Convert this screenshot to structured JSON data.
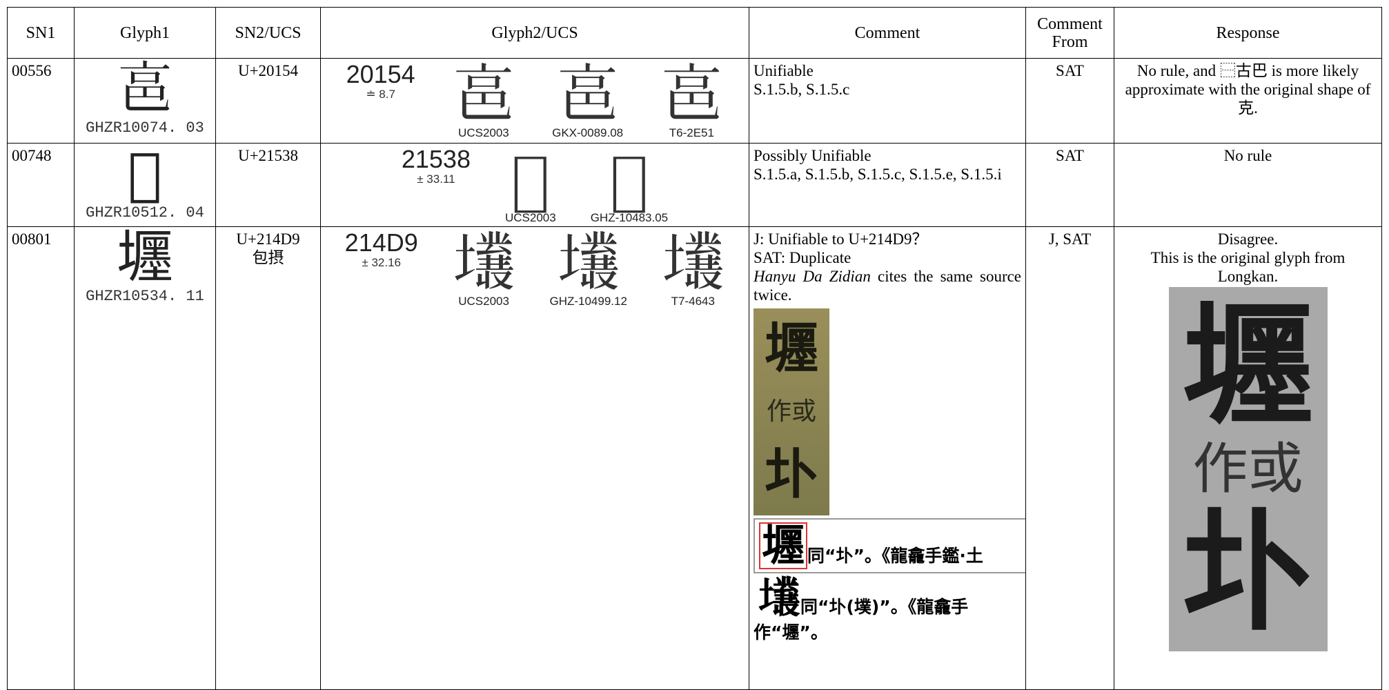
{
  "table": {
    "header": [
      "SN1",
      "Glyph1",
      "SN2/UCS",
      "Glyph2/UCS",
      "Comment",
      "Comment From",
      "Response"
    ],
    "rows": [
      {
        "sn1": "00556",
        "glyph1": {
          "char": "𠅔",
          "source": "GHZR10074. 03"
        },
        "sn2": [
          "U+20154"
        ],
        "glyph2": {
          "code": "20154",
          "score": "≐ 8.7",
          "variants": [
            {
              "char": "𠅔",
              "label": "UCS2003"
            },
            {
              "char": "𠅔",
              "label": "GKX-0089.08"
            },
            {
              "char": "𠅔",
              "label": "T6-2E51"
            }
          ]
        },
        "comment": [
          "Unifiable",
          "S.1.5.b, S.1.5.c"
        ],
        "comment_from": "SAT",
        "response": [
          "No rule, and ⿱古巴 is more likely approximate with the original shape of 克."
        ]
      },
      {
        "sn1": "00748",
        "glyph1": {
          "char": "𡔸",
          "source": "GHZR10512. 04"
        },
        "sn2": [
          "U+21538"
        ],
        "glyph2": {
          "code": "21538",
          "score": "± 33.11",
          "variants": [
            {
              "char": "𡔸",
              "label": "UCS2003"
            },
            {
              "char": "𡔸",
              "label": "GHZ-10483.05"
            }
          ]
        },
        "comment": [
          "Possibly Unifiable",
          "S.1.5.a,  S.1.5.b,  S.1.5.c,  S.1.5.e, S.1.5.i"
        ],
        "comment_from": "SAT",
        "response": [
          "No rule"
        ]
      },
      {
        "sn1": "00801",
        "glyph1": {
          "char": "壥",
          "source": "GHZR10534. 11"
        },
        "sn2": [
          "U+214D9",
          "包摂"
        ],
        "glyph2": {
          "code": "214D9",
          "score": "± 32.16",
          "variants": [
            {
              "char": "𡓙",
              "label": "UCS2003"
            },
            {
              "char": "𡓙",
              "label": "GHZ-10499.12"
            },
            {
              "char": "𡓙",
              "label": "T7-4643"
            }
          ]
        },
        "comment": [
          "J: Unifiable to U+214D9？",
          "SAT: Duplicate"
        ],
        "comment_note": {
          "italic": "Hanyu Da Zidian",
          "text": "cites the same source twice."
        },
        "comment_scan": [
          "壥",
          "作或",
          "圤"
        ],
        "comment_dict": [
          {
            "head": "壥",
            "text": "同“圤”。《龍龕手鑑·土"
          },
          {
            "head": "𡓙",
            "text": "同“圤(墣)”。《龍龕手"
          }
        ],
        "comment_dict_tail": "作“壥”。",
        "comment_from": "J, SAT",
        "response": [
          "Disagree.",
          "This is the original glyph from Longkan."
        ],
        "response_scan": [
          "壥",
          "作或",
          "圤"
        ]
      }
    ]
  }
}
